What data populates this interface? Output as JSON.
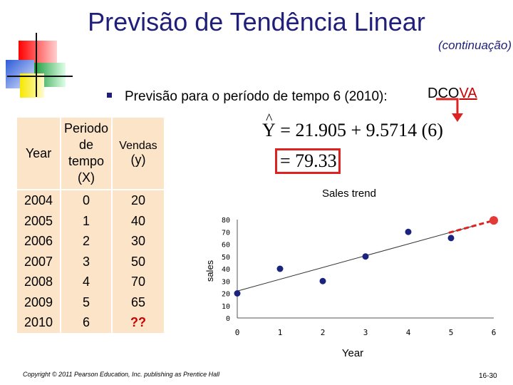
{
  "slide": {
    "title": "Previsão de Tendência Linear",
    "subtitle": "(continuação)",
    "dcova_prefix": "DCO",
    "dcova_highlight": "VA",
    "bullet_text": "Previsão para o período de tempo 6 (2010):",
    "footer": "Copyright © 2011 Pearson Education, Inc. publishing as Prentice Hall",
    "page_number": "16-30"
  },
  "equation": {
    "yhat": "Y",
    "rhs": "= 21.905 + 9.5714 (6)",
    "result": "= 79.33",
    "highlight_color": "#dd2222"
  },
  "table": {
    "headers": [
      "Year",
      "Periodo de tempo (X)",
      "Vendas (y)"
    ],
    "header_lines": [
      [
        "Year"
      ],
      [
        "Periodo",
        "de",
        "tempo",
        "(X)"
      ],
      [
        "Vendas",
        "(y)"
      ]
    ],
    "years": [
      "2004",
      "2005",
      "2006",
      "2007",
      "2008",
      "2009",
      "2010"
    ],
    "periods": [
      "0",
      "1",
      "2",
      "3",
      "4",
      "5",
      "6"
    ],
    "sales": [
      "20",
      "40",
      "30",
      "50",
      "70",
      "65",
      "??"
    ],
    "unknown_color": "#cc0000",
    "cell_color": "#fbe4c8"
  },
  "chart_data": {
    "type": "scatter",
    "title": "Sales trend",
    "xlabel": "Year",
    "ylabel": "sales",
    "xlim": [
      0,
      6
    ],
    "ylim": [
      0,
      80
    ],
    "x_ticks": [
      0,
      1,
      2,
      3,
      4,
      5,
      6
    ],
    "y_ticks": [
      0,
      10,
      20,
      30,
      40,
      50,
      60,
      70,
      80
    ],
    "points": [
      {
        "x": 0,
        "y": 20
      },
      {
        "x": 1,
        "y": 40
      },
      {
        "x": 2,
        "y": 30
      },
      {
        "x": 3,
        "y": 50
      },
      {
        "x": 4,
        "y": 70
      },
      {
        "x": 5,
        "y": 65
      }
    ],
    "forecast_point": {
      "x": 6,
      "y": 79.33
    },
    "trend_line": {
      "intercept": 21.905,
      "slope": 9.5714,
      "x_range": [
        0,
        6
      ]
    },
    "point_color": "#1a237e",
    "forecast_color": "#e53935",
    "grid": false
  }
}
